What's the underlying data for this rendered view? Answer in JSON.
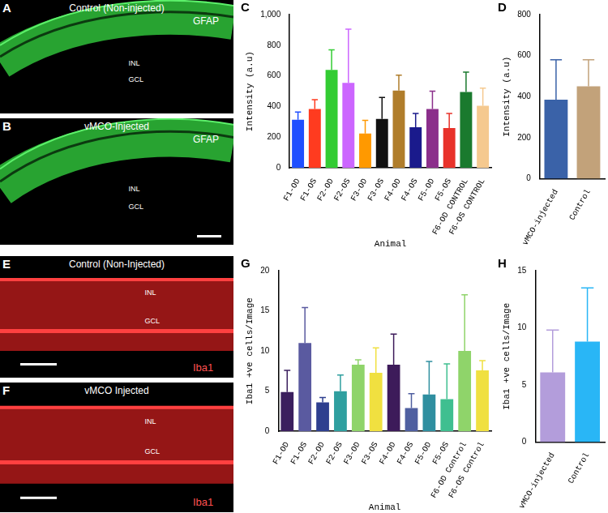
{
  "images": [
    {
      "panel": "A",
      "title": "Control (Non-injected)",
      "stain": "GFAP",
      "layers": [
        "INL",
        "GCL"
      ]
    },
    {
      "panel": "B",
      "title": "vMCO-Injected",
      "stain": "GFAP",
      "layers": [
        "INL",
        "GCL"
      ]
    },
    {
      "panel": "E",
      "title": "Control (Non-Injected)",
      "stain": "Iba1",
      "layers": [
        "INL",
        "GCL"
      ]
    },
    {
      "panel": "F",
      "title": "vMCO Injected",
      "stain": "Iba1",
      "layers": [
        "INL",
        "GCL"
      ]
    }
  ],
  "chart_data": [
    {
      "type": "bar",
      "panel": "C",
      "xlabel": "Animal",
      "ylabel": "Intensity (a.u)",
      "categories": [
        "F1-OD",
        "F1-OS",
        "F2-OD",
        "F2-OS",
        "F3-OD",
        "F3-OS",
        "F4-OD",
        "F4-OS",
        "F5-OD",
        "F5-OS",
        "F6-OD CONTROL",
        "F6-OS CONTROL"
      ],
      "values": [
        315,
        385,
        640,
        555,
        225,
        320,
        505,
        265,
        385,
        260,
        495,
        405
      ],
      "errors": [
        50,
        60,
        130,
        350,
        85,
        140,
        100,
        90,
        115,
        95,
        130,
        115
      ],
      "colors": [
        "#1f4fff",
        "#ff3b1f",
        "#33cc33",
        "#cc66ff",
        "#ff9900",
        "#111111",
        "#b07d2b",
        "#1a1a8c",
        "#8b2f8b",
        "#e8322a",
        "#1a7a2e",
        "#f5c98f"
      ],
      "ylim": [
        0,
        1000
      ],
      "yticks": [
        0,
        200,
        400,
        600,
        800,
        1000
      ],
      "grid": false
    },
    {
      "type": "bar",
      "panel": "D",
      "ylabel": "Intensity (a.u)",
      "categories": [
        "vMCO-injected",
        "Control"
      ],
      "values": [
        385,
        450
      ],
      "errors": [
        195,
        130
      ],
      "colors": [
        "#3a62a8",
        "#c2a27a"
      ],
      "ylim": [
        0,
        800
      ],
      "yticks": [
        0,
        200,
        400,
        600,
        800
      ],
      "grid": false
    },
    {
      "type": "bar",
      "panel": "G",
      "xlabel": "Animal",
      "ylabel": "Iba1 +ve cells/Image",
      "categories": [
        "F1-OD",
        "F1-OS",
        "F2-OD",
        "F2-OS",
        "F3-OD",
        "F3-OS",
        "F4-OD",
        "F4-OS",
        "F5-OD",
        "F5-OS",
        "F6-OD Control",
        "F6-OS Control"
      ],
      "values": [
        4.9,
        11,
        3.6,
        5.0,
        8.3,
        7.3,
        8.3,
        2.9,
        4.6,
        4.0,
        10,
        7.6
      ],
      "errors": [
        2.7,
        4.4,
        0.6,
        2.0,
        0.6,
        3.1,
        3.8,
        1.8,
        4.1,
        4.4,
        7,
        1.2
      ],
      "colors": [
        "#3b1f5e",
        "#5a5aa0",
        "#2e3f8f",
        "#2f9f9f",
        "#8fd46a",
        "#f0e040",
        "#3d1b5a",
        "#4f5fa0",
        "#2f8fa0",
        "#3fbf90",
        "#8fd46a",
        "#f0e040"
      ],
      "ylim": [
        0,
        20
      ],
      "yticks": [
        0,
        5,
        10,
        15,
        20
      ],
      "grid": false
    },
    {
      "type": "bar",
      "panel": "H",
      "ylabel": "Iba1 +ve cells/Image",
      "categories": [
        "vMCO-injected",
        "Control"
      ],
      "values": [
        6.1,
        8.8
      ],
      "errors": [
        3.7,
        4.7
      ],
      "colors": [
        "#b39ddb",
        "#29b6f6"
      ],
      "ylim": [
        0,
        15
      ],
      "yticks": [
        0,
        5,
        10,
        15
      ],
      "grid": false
    }
  ]
}
